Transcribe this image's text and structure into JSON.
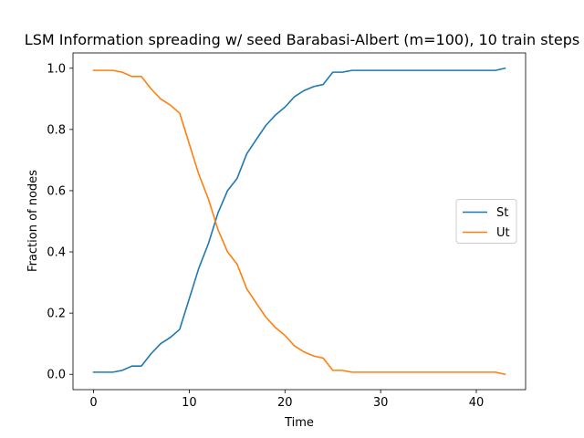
{
  "chart_data": {
    "type": "line",
    "title": "LSM Information spreading w/ seed Barabasi-Albert (m=100), 10 train steps",
    "xlabel": "Time",
    "ylabel": "Fraction of nodes",
    "xlim": [
      -2.15,
      45.15
    ],
    "ylim": [
      -0.05,
      1.05
    ],
    "xticks": [
      0,
      10,
      20,
      30,
      40
    ],
    "yticks": [
      0.0,
      0.2,
      0.4,
      0.6,
      0.8,
      1.0
    ],
    "xtick_labels": [
      "0",
      "10",
      "20",
      "30",
      "40"
    ],
    "ytick_labels": [
      "0.0",
      "0.2",
      "0.4",
      "0.6",
      "0.8",
      "1.0"
    ],
    "grid": false,
    "legend_position": "center-right",
    "x": [
      0,
      1,
      2,
      3,
      4,
      5,
      6,
      7,
      8,
      9,
      10,
      11,
      12,
      13,
      14,
      15,
      16,
      17,
      18,
      19,
      20,
      21,
      22,
      23,
      24,
      25,
      26,
      27,
      28,
      29,
      30,
      31,
      32,
      33,
      34,
      35,
      36,
      37,
      38,
      39,
      40,
      41,
      42,
      43
    ],
    "series": [
      {
        "name": "St",
        "color": "#1f77b4",
        "values": [
          0.007,
          0.007,
          0.007,
          0.013,
          0.027,
          0.027,
          0.067,
          0.1,
          0.12,
          0.147,
          0.247,
          0.347,
          0.427,
          0.527,
          0.6,
          0.64,
          0.72,
          0.767,
          0.813,
          0.847,
          0.873,
          0.907,
          0.927,
          0.94,
          0.947,
          0.987,
          0.987,
          0.993,
          0.993,
          0.993,
          0.993,
          0.993,
          0.993,
          0.993,
          0.993,
          0.993,
          0.993,
          0.993,
          0.993,
          0.993,
          0.993,
          0.993,
          0.993,
          1.0
        ]
      },
      {
        "name": "Ut",
        "color": "#ff7f0e",
        "values": [
          0.993,
          0.993,
          0.993,
          0.987,
          0.973,
          0.973,
          0.933,
          0.9,
          0.88,
          0.853,
          0.753,
          0.653,
          0.573,
          0.473,
          0.4,
          0.36,
          0.28,
          0.233,
          0.187,
          0.153,
          0.127,
          0.093,
          0.073,
          0.06,
          0.053,
          0.013,
          0.013,
          0.007,
          0.007,
          0.007,
          0.007,
          0.007,
          0.007,
          0.007,
          0.007,
          0.007,
          0.007,
          0.007,
          0.007,
          0.007,
          0.007,
          0.007,
          0.007,
          0.0
        ]
      }
    ]
  }
}
